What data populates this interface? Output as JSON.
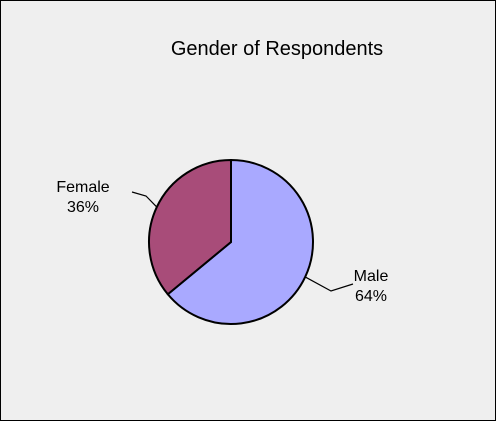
{
  "chart_data": {
    "type": "pie",
    "title": "Gender of Respondents",
    "slices": [
      {
        "label": "Male",
        "value": 64,
        "value_label": "64%",
        "color": "#a9a9ff"
      },
      {
        "label": "Female",
        "value": 36,
        "value_label": "36%",
        "color": "#a84c79"
      }
    ],
    "start_angle_deg": 0,
    "direction": "clockwise",
    "legend": "none",
    "background_color": "#efefef"
  }
}
